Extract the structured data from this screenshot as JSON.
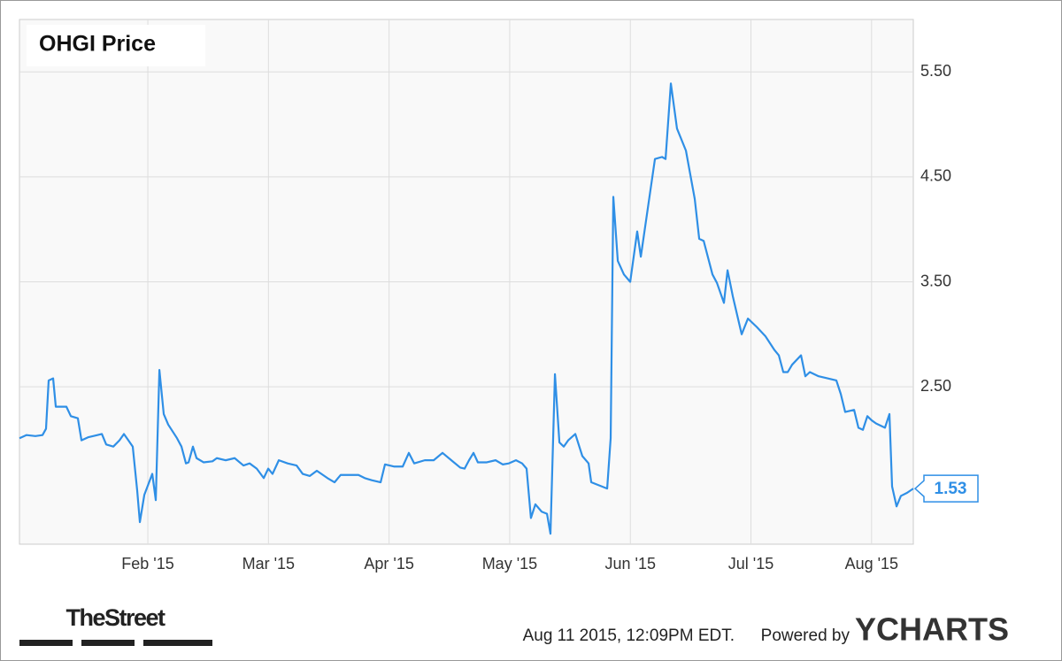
{
  "chart_data": {
    "type": "line",
    "title": "OHGI Price",
    "color": "#2f8fe6",
    "x": [
      -0.064,
      -0.005,
      0.068,
      0.127,
      0.156,
      0.178,
      0.215,
      0.237,
      0.325,
      0.362,
      0.42,
      0.45,
      0.508,
      0.582,
      0.619,
      0.655,
      0.714,
      0.765,
      0.802,
      0.839,
      0.875,
      0.912,
      0.934,
      0.971,
      1.037,
      1.066,
      1.096,
      1.132,
      1.169,
      1.242,
      1.279,
      1.316,
      1.338,
      1.374,
      1.404,
      1.462,
      1.536,
      1.572,
      1.646,
      1.72,
      1.793,
      1.844,
      1.903,
      1.961,
      1.998,
      2.034,
      2.086,
      2.159,
      2.233,
      2.284,
      2.343,
      2.401,
      2.489,
      2.548,
      2.599,
      2.673,
      2.746,
      2.798,
      2.856,
      2.93,
      2.966,
      3.04,
      3.113,
      3.164,
      3.208,
      3.296,
      3.37,
      3.443,
      3.516,
      3.59,
      3.626,
      3.663,
      3.7,
      3.736,
      3.81,
      3.883,
      3.942,
      3.993,
      4.052,
      4.103,
      4.14,
      4.176,
      4.213,
      4.265,
      4.309,
      4.338,
      4.375,
      4.412,
      4.448,
      4.485,
      4.544,
      4.602,
      4.654,
      4.676,
      4.764,
      4.808,
      4.837,
      4.859,
      4.896,
      4.947,
      4.999,
      5.057,
      5.087,
      5.204,
      5.263,
      5.292,
      5.336,
      5.387,
      5.461,
      5.534,
      5.571,
      5.608,
      5.681,
      5.718,
      5.776,
      5.806,
      5.85,
      5.923,
      5.975,
      6.048,
      6.121,
      6.195,
      6.231,
      6.268,
      6.305,
      6.341,
      6.415,
      6.451,
      6.488,
      6.561,
      6.635,
      6.708,
      6.745,
      6.781,
      6.855,
      6.891,
      6.928,
      6.965,
      7.001,
      7.038,
      7.111,
      7.148,
      7.17,
      7.207,
      7.243,
      7.295,
      7.346
    ],
    "values": [
      2.01,
      2.04,
      2.03,
      2.04,
      2.1,
      2.56,
      2.58,
      2.31,
      2.31,
      2.22,
      2.2,
      1.99,
      2.02,
      2.04,
      2.05,
      1.95,
      1.93,
      1.99,
      2.05,
      1.99,
      1.93,
      1.51,
      1.21,
      1.47,
      1.67,
      1.42,
      2.66,
      2.24,
      2.14,
      2.01,
      1.93,
      1.77,
      1.78,
      1.93,
      1.82,
      1.78,
      1.79,
      1.82,
      1.8,
      1.82,
      1.75,
      1.77,
      1.72,
      1.63,
      1.72,
      1.67,
      1.8,
      1.77,
      1.75,
      1.67,
      1.65,
      1.7,
      1.63,
      1.59,
      1.66,
      1.66,
      1.66,
      1.63,
      1.61,
      1.59,
      1.76,
      1.74,
      1.74,
      1.87,
      1.77,
      1.8,
      1.8,
      1.87,
      1.8,
      1.73,
      1.72,
      1.8,
      1.87,
      1.78,
      1.78,
      1.8,
      1.76,
      1.77,
      1.8,
      1.77,
      1.72,
      1.25,
      1.38,
      1.31,
      1.29,
      1.1,
      2.62,
      1.97,
      1.93,
      1.99,
      2.05,
      1.84,
      1.77,
      1.59,
      1.55,
      1.53,
      2.01,
      4.31,
      3.7,
      3.57,
      3.5,
      3.98,
      3.74,
      4.67,
      4.69,
      4.67,
      5.39,
      4.96,
      4.75,
      4.29,
      3.91,
      3.89,
      3.57,
      3.49,
      3.3,
      3.61,
      3.36,
      3.0,
      3.15,
      3.07,
      2.98,
      2.85,
      2.8,
      2.64,
      2.64,
      2.71,
      2.8,
      2.6,
      2.64,
      2.6,
      2.58,
      2.56,
      2.43,
      2.26,
      2.28,
      2.11,
      2.09,
      2.22,
      2.18,
      2.15,
      2.11,
      2.24,
      1.55,
      1.36,
      1.46,
      1.49,
      1.53
    ],
    "xlim": [
      -0.064,
      7.346
    ],
    "xticks": [
      {
        "value": 1,
        "label": "Feb '15"
      },
      {
        "value": 2,
        "label": "Mar '15"
      },
      {
        "value": 3,
        "label": "Apr '15"
      },
      {
        "value": 4,
        "label": "May '15"
      },
      {
        "value": 5,
        "label": "Jun '15"
      },
      {
        "value": 6,
        "label": "Jul '15"
      },
      {
        "value": 7,
        "label": "Aug '15"
      }
    ],
    "ylim": [
      1.0,
      6.0
    ],
    "yticks": [
      {
        "value": 2.5,
        "label": "2.50"
      },
      {
        "value": 3.5,
        "label": "3.50"
      },
      {
        "value": 4.5,
        "label": "4.50"
      },
      {
        "value": 5.5,
        "label": "5.50"
      }
    ],
    "grid": true,
    "source_logo": "TheStreet",
    "timestamp": "Aug 11 2015, 12:09PM EDT.",
    "powered_by": "Powered by",
    "brand": "YCHARTS"
  }
}
